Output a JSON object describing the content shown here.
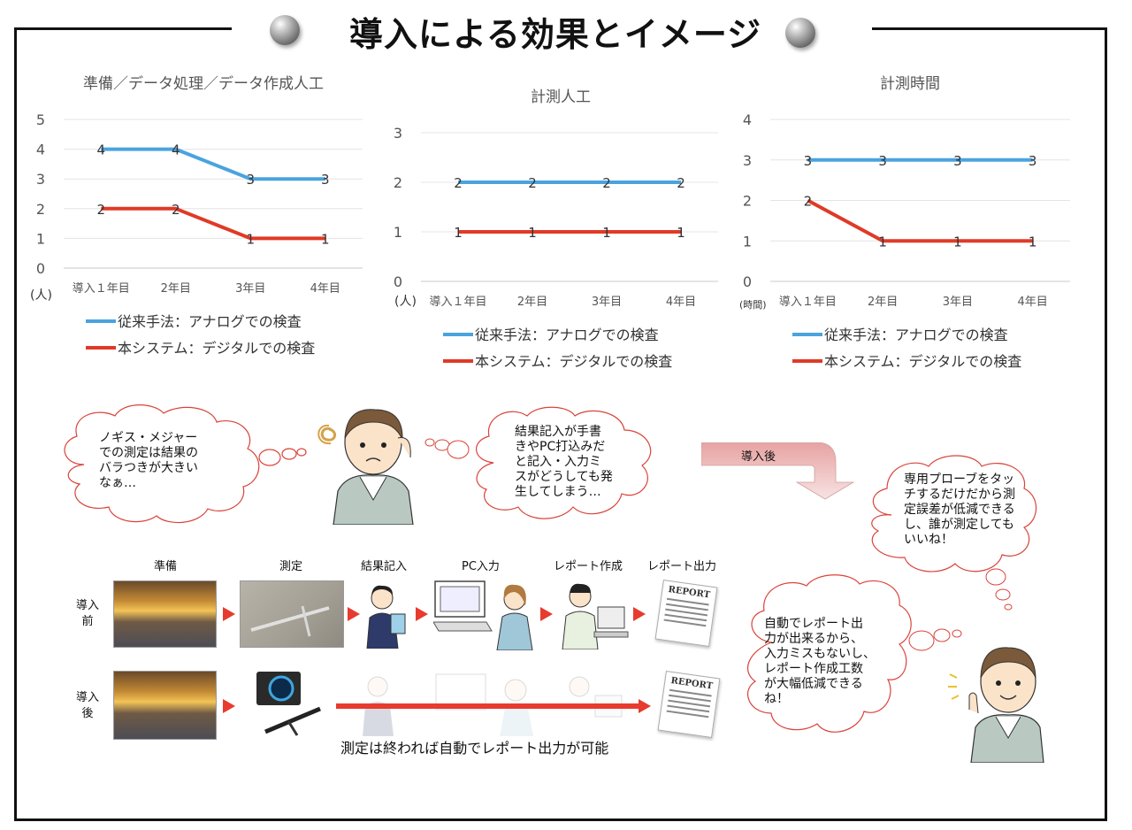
{
  "page": {
    "title": "導入による効果とイメージ"
  },
  "charts": [
    {
      "title": "準備／データ処理／データ作成人工",
      "unit": "(人)",
      "categories": [
        "導入１年目",
        "2年目",
        "3年目",
        "4年目"
      ],
      "ylim": [
        0,
        5
      ],
      "yticks": [
        "0",
        "1",
        "2",
        "3",
        "4",
        "5"
      ],
      "series": [
        {
          "name": "従来手法：アナログでの検査",
          "color": "#4aa3df",
          "values": [
            4,
            4,
            3,
            3
          ]
        },
        {
          "name": "本システム：デジタルでの検査",
          "color": "#e03a26",
          "values": [
            2,
            2,
            1,
            1
          ]
        }
      ]
    },
    {
      "title": "計測人工",
      "unit": "(人)",
      "categories": [
        "導入１年目",
        "2年目",
        "3年目",
        "4年目"
      ],
      "ylim": [
        0,
        3
      ],
      "yticks": [
        "0",
        "1",
        "2",
        "3"
      ],
      "series": [
        {
          "name": "従来手法：アナログでの検査",
          "color": "#4aa3df",
          "values": [
            2,
            2,
            2,
            2
          ]
        },
        {
          "name": "本システム：デジタルでの検査",
          "color": "#e03a26",
          "values": [
            1,
            1,
            1,
            1
          ]
        }
      ]
    },
    {
      "title": "計測時間",
      "unit": "(時間)",
      "categories": [
        "導入１年目",
        "2年目",
        "3年目",
        "4年目"
      ],
      "ylim": [
        0,
        4
      ],
      "yticks": [
        "0",
        "1",
        "2",
        "3",
        "4"
      ],
      "series": [
        {
          "name": "従来手法：アナログでの検査",
          "color": "#4aa3df",
          "values": [
            3,
            3,
            3,
            3
          ]
        },
        {
          "name": "本システム：デジタルでの検査",
          "color": "#e03a26",
          "values": [
            2,
            1,
            1,
            1
          ]
        }
      ]
    }
  ],
  "chart_data": [
    {
      "type": "line",
      "title": "準備／データ処理／データ作成人工",
      "ylabel": "(人)",
      "categories": [
        "導入１年目",
        "2年目",
        "3年目",
        "4年目"
      ],
      "ylim": [
        0,
        5
      ],
      "grid": true,
      "legend": "bottom",
      "series": [
        {
          "name": "従来手法：アナログでの検査",
          "values": [
            4,
            4,
            3,
            3
          ]
        },
        {
          "name": "本システム：デジタルでの検査",
          "values": [
            2,
            2,
            1,
            1
          ]
        }
      ]
    },
    {
      "type": "line",
      "title": "計測人工",
      "ylabel": "(人)",
      "categories": [
        "導入１年目",
        "2年目",
        "3年目",
        "4年目"
      ],
      "ylim": [
        0,
        3
      ],
      "grid": true,
      "legend": "bottom",
      "series": [
        {
          "name": "従来手法：アナログでの検査",
          "values": [
            2,
            2,
            2,
            2
          ]
        },
        {
          "name": "本システム：デジタルでの検査",
          "values": [
            1,
            1,
            1,
            1
          ]
        }
      ]
    },
    {
      "type": "line",
      "title": "計測時間",
      "ylabel": "(時間)",
      "categories": [
        "導入１年目",
        "2年目",
        "3年目",
        "4年目"
      ],
      "ylim": [
        0,
        4
      ],
      "grid": true,
      "legend": "bottom",
      "series": [
        {
          "name": "従来手法：アナログでの検査",
          "values": [
            3,
            3,
            3,
            3
          ]
        },
        {
          "name": "本システム：デジタルでの検査",
          "values": [
            2,
            1,
            1,
            1
          ]
        }
      ]
    }
  ],
  "bubbles": {
    "b1": [
      "ノギス・メジャー",
      "での測定は結果の",
      "バラつきが大きい",
      "なぁ…"
    ],
    "b2": [
      "結果記入が手書",
      "きやPC打込みだ",
      "と記入・入力ミ",
      "スがどうしても発",
      "生してしまう…"
    ],
    "b3": [
      "専用プローブをタッ",
      "チするだけだから測",
      "定誤差が低減できる",
      "し、誰が測定しても",
      "いいね！"
    ],
    "b4": [
      "自動でレポート出",
      "力が出来るから、",
      "入力ミスもないし、",
      "レポート作成工数",
      "が大幅低減できる",
      "ね！"
    ]
  },
  "after_label": "導入後",
  "process": {
    "steps": [
      "準備",
      "測定",
      "結果記入",
      "PC入力",
      "レポート作成",
      "レポート出力"
    ],
    "before_label": [
      "導入",
      "前"
    ],
    "after_label": [
      "導入",
      "後"
    ],
    "report_text": "REPORT",
    "caption": "測定は終われば自動でレポート出力が可能"
  }
}
